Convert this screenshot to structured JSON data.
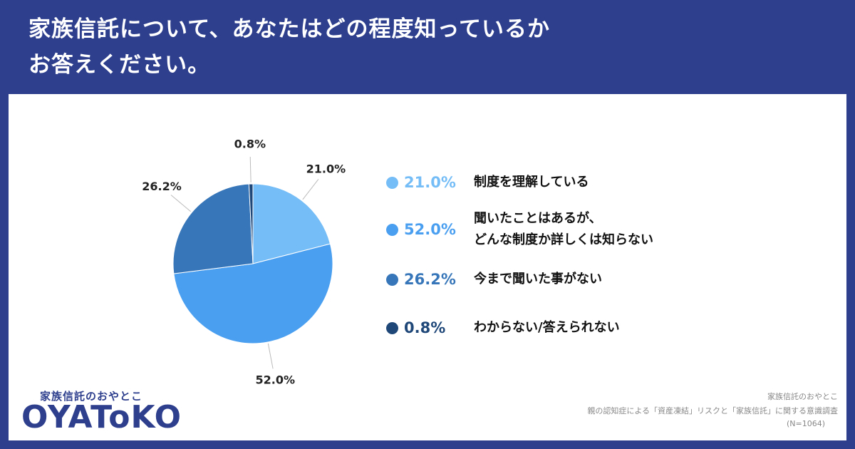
{
  "chart_data": {
    "type": "pie",
    "title": "家族信託について、あなたはどの程度知っているか\nお答えください。",
    "categories": [
      "制度を理解している",
      "聞いたことはあるが、\nどんな制度か詳しくは知らない",
      "今まで聞いた事がない",
      "わからない/答えられない"
    ],
    "values": [
      21.0,
      52.0,
      26.2,
      0.8
    ],
    "value_labels": [
      "21.0%",
      "52.0%",
      "26.2%",
      "0.8%"
    ],
    "colors": [
      "#75bdf6",
      "#4a9ff0",
      "#3676b9",
      "#1f4879"
    ],
    "source": [
      "家族信託のおやとこ",
      "親の認知症による「資産凍結」リスクと「家族信託」に関する意識調査",
      "(N=1064)"
    ]
  },
  "logo": {
    "tagline": "家族信託のおやとこ",
    "name": "OYAToKO"
  }
}
